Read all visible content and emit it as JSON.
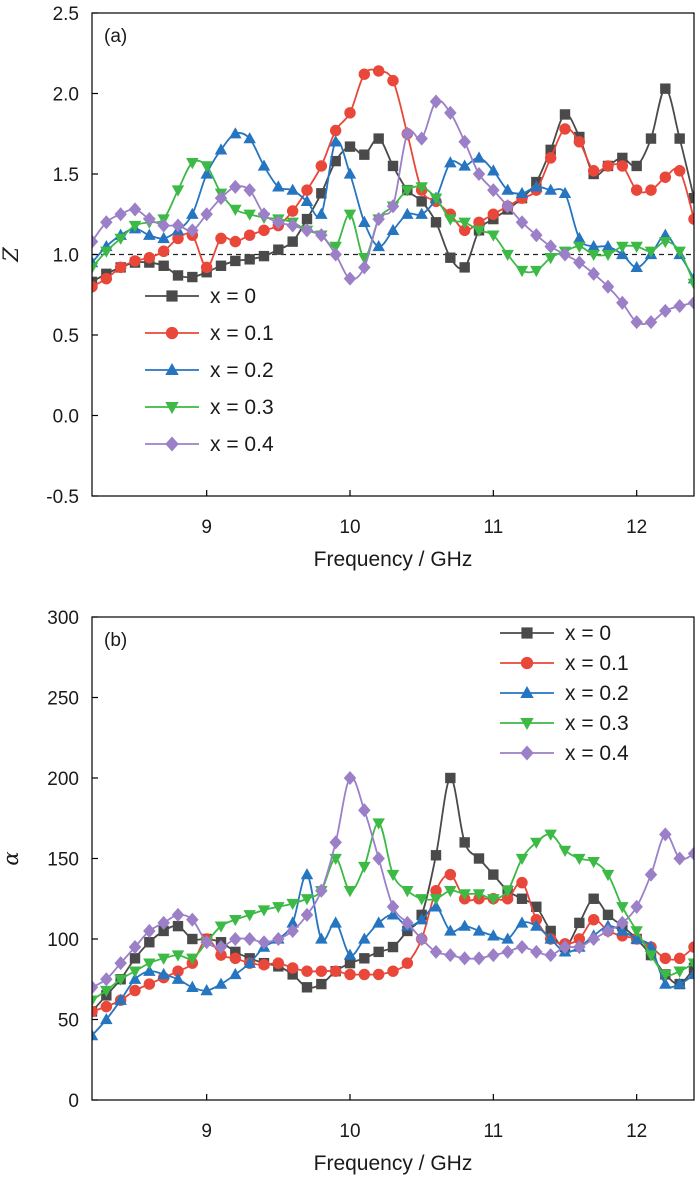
{
  "chart_data": [
    {
      "type": "line",
      "panel_label": "(a)",
      "xlabel": "Frequency / GHz",
      "ylabel": "Z",
      "xlim": [
        8.2,
        12.4
      ],
      "ylim": [
        -0.5,
        2.5
      ],
      "xticks": [
        "9",
        "10",
        "11",
        "12"
      ],
      "yticks": [
        "-0.5",
        "0.0",
        "0.5",
        "1.0",
        "1.5",
        "2.0",
        "2.5"
      ],
      "reference_line": 1.0,
      "legend_position": "lower-left",
      "series": [
        {
          "name": "x = 0",
          "color": "#4a4a4a",
          "marker": "square",
          "x": [
            8.2,
            8.3,
            8.4,
            8.5,
            8.6,
            8.7,
            8.8,
            8.9,
            9.0,
            9.1,
            9.2,
            9.3,
            9.4,
            9.5,
            9.6,
            9.7,
            9.8,
            9.9,
            10.0,
            10.1,
            10.2,
            10.3,
            10.4,
            10.5,
            10.6,
            10.7,
            10.8,
            10.9,
            11.0,
            11.1,
            11.2,
            11.3,
            11.4,
            11.5,
            11.6,
            11.7,
            11.8,
            11.9,
            12.0,
            12.1,
            12.2,
            12.3,
            12.4
          ],
          "y": [
            0.83,
            0.88,
            0.92,
            0.95,
            0.95,
            0.93,
            0.87,
            0.86,
            0.89,
            0.93,
            0.96,
            0.97,
            0.99,
            1.03,
            1.08,
            1.22,
            1.38,
            1.58,
            1.67,
            1.62,
            1.72,
            1.55,
            1.4,
            1.33,
            1.2,
            0.98,
            0.92,
            1.15,
            1.22,
            1.28,
            1.35,
            1.45,
            1.65,
            1.87,
            1.73,
            1.5,
            1.55,
            1.6,
            1.55,
            1.72,
            2.03,
            1.72,
            1.35
          ]
        },
        {
          "name": "x = 0.1",
          "color": "#e8473a",
          "marker": "circle",
          "x": [
            8.2,
            8.3,
            8.4,
            8.5,
            8.6,
            8.7,
            8.8,
            8.9,
            9.0,
            9.1,
            9.2,
            9.3,
            9.4,
            9.5,
            9.6,
            9.7,
            9.8,
            9.9,
            10.0,
            10.1,
            10.2,
            10.3,
            10.4,
            10.5,
            10.6,
            10.7,
            10.8,
            10.9,
            11.0,
            11.1,
            11.2,
            11.3,
            11.4,
            11.5,
            11.6,
            11.7,
            11.8,
            11.9,
            12.0,
            12.1,
            12.2,
            12.3,
            12.4
          ],
          "y": [
            0.8,
            0.85,
            0.92,
            0.96,
            0.98,
            1.02,
            1.1,
            1.12,
            0.92,
            1.1,
            1.08,
            1.12,
            1.15,
            1.18,
            1.27,
            1.4,
            1.55,
            1.77,
            1.88,
            2.12,
            2.14,
            2.08,
            1.75,
            1.4,
            1.33,
            1.25,
            1.15,
            1.2,
            1.25,
            1.3,
            1.35,
            1.4,
            1.6,
            1.78,
            1.7,
            1.52,
            1.55,
            1.55,
            1.4,
            1.4,
            1.48,
            1.52,
            1.22
          ]
        },
        {
          "name": "x = 0.2",
          "color": "#2575c0",
          "marker": "triangle-up",
          "x": [
            8.2,
            8.3,
            8.4,
            8.5,
            8.6,
            8.7,
            8.8,
            8.9,
            9.0,
            9.1,
            9.2,
            9.3,
            9.4,
            9.5,
            9.6,
            9.7,
            9.8,
            9.9,
            10.0,
            10.1,
            10.2,
            10.3,
            10.4,
            10.5,
            10.6,
            10.7,
            10.8,
            10.9,
            11.0,
            11.1,
            11.2,
            11.3,
            11.4,
            11.5,
            11.6,
            11.7,
            11.8,
            11.9,
            12.0,
            12.1,
            12.2,
            12.3,
            12.4
          ],
          "y": [
            0.95,
            1.05,
            1.12,
            1.16,
            1.12,
            1.1,
            1.15,
            1.25,
            1.5,
            1.65,
            1.75,
            1.72,
            1.55,
            1.42,
            1.4,
            1.33,
            1.25,
            1.7,
            1.5,
            1.2,
            1.05,
            1.15,
            1.25,
            1.25,
            1.35,
            1.57,
            1.55,
            1.6,
            1.52,
            1.4,
            1.38,
            1.42,
            1.4,
            1.38,
            1.1,
            1.05,
            1.05,
            1.0,
            0.92,
            1.0,
            1.12,
            1.0,
            0.85
          ]
        },
        {
          "name": "x = 0.3",
          "color": "#3cba45",
          "marker": "triangle-down",
          "x": [
            8.2,
            8.3,
            8.4,
            8.5,
            8.6,
            8.7,
            8.8,
            8.9,
            9.0,
            9.1,
            9.2,
            9.3,
            9.4,
            9.5,
            9.6,
            9.7,
            9.8,
            9.9,
            10.0,
            10.1,
            10.2,
            10.3,
            10.4,
            10.5,
            10.6,
            10.7,
            10.8,
            10.9,
            11.0,
            11.1,
            11.2,
            11.3,
            11.4,
            11.5,
            11.6,
            11.7,
            11.8,
            11.9,
            12.0,
            12.1,
            12.2,
            12.3,
            12.4
          ],
          "y": [
            0.92,
            1.02,
            1.1,
            1.18,
            1.2,
            1.22,
            1.4,
            1.57,
            1.55,
            1.38,
            1.28,
            1.25,
            1.23,
            1.22,
            1.2,
            1.15,
            1.12,
            1.05,
            1.25,
            0.98,
            1.22,
            1.3,
            1.4,
            1.42,
            1.35,
            1.22,
            1.2,
            1.15,
            1.12,
            1.0,
            0.9,
            0.9,
            0.98,
            1.02,
            1.05,
            1.0,
            1.0,
            1.05,
            1.05,
            1.02,
            1.08,
            1.02,
            0.82
          ]
        },
        {
          "name": "x = 0.4",
          "color": "#9b80c8",
          "marker": "diamond",
          "x": [
            8.2,
            8.3,
            8.4,
            8.5,
            8.6,
            8.7,
            8.8,
            8.9,
            9.0,
            9.1,
            9.2,
            9.3,
            9.4,
            9.5,
            9.6,
            9.7,
            9.8,
            9.9,
            10.0,
            10.1,
            10.2,
            10.3,
            10.4,
            10.5,
            10.6,
            10.7,
            10.8,
            10.9,
            11.0,
            11.1,
            11.2,
            11.3,
            11.4,
            11.5,
            11.6,
            11.7,
            11.8,
            11.9,
            12.0,
            12.1,
            12.2,
            12.3,
            12.4
          ],
          "y": [
            1.08,
            1.2,
            1.25,
            1.28,
            1.22,
            1.18,
            1.18,
            1.15,
            1.25,
            1.35,
            1.42,
            1.4,
            1.25,
            1.2,
            1.18,
            1.15,
            1.12,
            1.0,
            0.85,
            0.92,
            1.22,
            1.3,
            1.75,
            1.72,
            1.95,
            1.88,
            1.7,
            1.5,
            1.4,
            1.3,
            1.2,
            1.12,
            1.05,
            1.0,
            0.95,
            0.88,
            0.8,
            0.7,
            0.58,
            0.58,
            0.65,
            0.68,
            0.7
          ]
        }
      ]
    },
    {
      "type": "line",
      "panel_label": "(b)",
      "xlabel": "Frequency / GHz",
      "ylabel": "α",
      "xlim": [
        8.2,
        12.4
      ],
      "ylim": [
        0,
        300
      ],
      "xticks": [
        "9",
        "10",
        "11",
        "12"
      ],
      "yticks": [
        "0",
        "50",
        "100",
        "150",
        "200",
        "250",
        "300"
      ],
      "legend_position": "top-right",
      "series": [
        {
          "name": "x = 0",
          "color": "#4a4a4a",
          "marker": "square",
          "x": [
            8.2,
            8.3,
            8.4,
            8.5,
            8.6,
            8.7,
            8.8,
            8.9,
            9.0,
            9.1,
            9.2,
            9.3,
            9.4,
            9.5,
            9.6,
            9.7,
            9.8,
            9.9,
            10.0,
            10.1,
            10.2,
            10.3,
            10.4,
            10.5,
            10.6,
            10.7,
            10.8,
            10.9,
            11.0,
            11.1,
            11.2,
            11.3,
            11.4,
            11.5,
            11.6,
            11.7,
            11.8,
            11.9,
            12.0,
            12.1,
            12.2,
            12.3,
            12.4
          ],
          "y": [
            55,
            65,
            75,
            88,
            98,
            105,
            108,
            100,
            100,
            98,
            92,
            88,
            85,
            83,
            78,
            70,
            72,
            80,
            85,
            88,
            92,
            95,
            105,
            115,
            152,
            200,
            160,
            150,
            140,
            130,
            125,
            120,
            105,
            95,
            110,
            125,
            115,
            108,
            100,
            90,
            78,
            72,
            82
          ]
        },
        {
          "name": "x = 0.1",
          "color": "#e8473a",
          "marker": "circle",
          "x": [
            8.2,
            8.3,
            8.4,
            8.5,
            8.6,
            8.7,
            8.8,
            8.9,
            9.0,
            9.1,
            9.2,
            9.3,
            9.4,
            9.5,
            9.6,
            9.7,
            9.8,
            9.9,
            10.0,
            10.1,
            10.2,
            10.3,
            10.4,
            10.5,
            10.6,
            10.7,
            10.8,
            10.9,
            11.0,
            11.1,
            11.2,
            11.3,
            11.4,
            11.5,
            11.6,
            11.7,
            11.8,
            11.9,
            12.0,
            12.1,
            12.2,
            12.3,
            12.4
          ],
          "y": [
            55,
            58,
            62,
            68,
            72,
            76,
            80,
            85,
            100,
            90,
            88,
            85,
            84,
            85,
            82,
            80,
            80,
            80,
            78,
            78,
            78,
            80,
            85,
            100,
            130,
            140,
            125,
            125,
            125,
            125,
            135,
            112,
            100,
            97,
            100,
            112,
            105,
            102,
            100,
            95,
            88,
            88,
            95
          ]
        },
        {
          "name": "x = 0.2",
          "color": "#2575c0",
          "marker": "triangle-up",
          "x": [
            8.2,
            8.3,
            8.4,
            8.5,
            8.6,
            8.7,
            8.8,
            8.9,
            9.0,
            9.1,
            9.2,
            9.3,
            9.4,
            9.5,
            9.6,
            9.7,
            9.8,
            9.9,
            10.0,
            10.1,
            10.2,
            10.3,
            10.4,
            10.5,
            10.6,
            10.7,
            10.8,
            10.9,
            11.0,
            11.1,
            11.2,
            11.3,
            11.4,
            11.5,
            11.6,
            11.7,
            11.8,
            11.9,
            12.0,
            12.1,
            12.2,
            12.3,
            12.4
          ],
          "y": [
            40,
            50,
            62,
            75,
            80,
            78,
            75,
            70,
            68,
            72,
            78,
            85,
            95,
            100,
            110,
            140,
            100,
            110,
            90,
            100,
            110,
            115,
            108,
            112,
            120,
            105,
            108,
            105,
            102,
            100,
            110,
            108,
            100,
            92,
            95,
            102,
            108,
            105,
            100,
            95,
            72,
            72,
            78
          ]
        },
        {
          "name": "x = 0.3",
          "color": "#3cba45",
          "marker": "triangle-down",
          "x": [
            8.2,
            8.3,
            8.4,
            8.5,
            8.6,
            8.7,
            8.8,
            8.9,
            9.0,
            9.1,
            9.2,
            9.3,
            9.4,
            9.5,
            9.6,
            9.7,
            9.8,
            9.9,
            10.0,
            10.1,
            10.2,
            10.3,
            10.4,
            10.5,
            10.6,
            10.7,
            10.8,
            10.9,
            11.0,
            11.1,
            11.2,
            11.3,
            11.4,
            11.5,
            11.6,
            11.7,
            11.8,
            11.9,
            12.0,
            12.1,
            12.2,
            12.3,
            12.4
          ],
          "y": [
            62,
            68,
            75,
            80,
            85,
            88,
            90,
            88,
            98,
            108,
            112,
            115,
            118,
            120,
            122,
            125,
            130,
            150,
            130,
            145,
            172,
            140,
            130,
            125,
            125,
            130,
            128,
            128,
            125,
            130,
            150,
            160,
            165,
            155,
            150,
            148,
            140,
            120,
            105,
            90,
            78,
            80,
            85
          ]
        },
        {
          "name": "x = 0.4",
          "color": "#9b80c8",
          "marker": "diamond",
          "x": [
            8.2,
            8.3,
            8.4,
            8.5,
            8.6,
            8.7,
            8.8,
            8.9,
            9.0,
            9.1,
            9.2,
            9.3,
            9.4,
            9.5,
            9.6,
            9.7,
            9.8,
            9.9,
            10.0,
            10.1,
            10.2,
            10.3,
            10.4,
            10.5,
            10.6,
            10.7,
            10.8,
            10.9,
            11.0,
            11.1,
            11.2,
            11.3,
            11.4,
            11.5,
            11.6,
            11.7,
            11.8,
            11.9,
            12.0,
            12.1,
            12.2,
            12.3,
            12.4
          ],
          "y": [
            70,
            75,
            85,
            95,
            105,
            110,
            115,
            112,
            98,
            95,
            100,
            100,
            98,
            100,
            105,
            115,
            130,
            160,
            200,
            180,
            150,
            120,
            110,
            100,
            92,
            90,
            88,
            88,
            90,
            92,
            95,
            92,
            90,
            95,
            95,
            100,
            105,
            110,
            120,
            140,
            165,
            150,
            153
          ]
        }
      ]
    }
  ]
}
